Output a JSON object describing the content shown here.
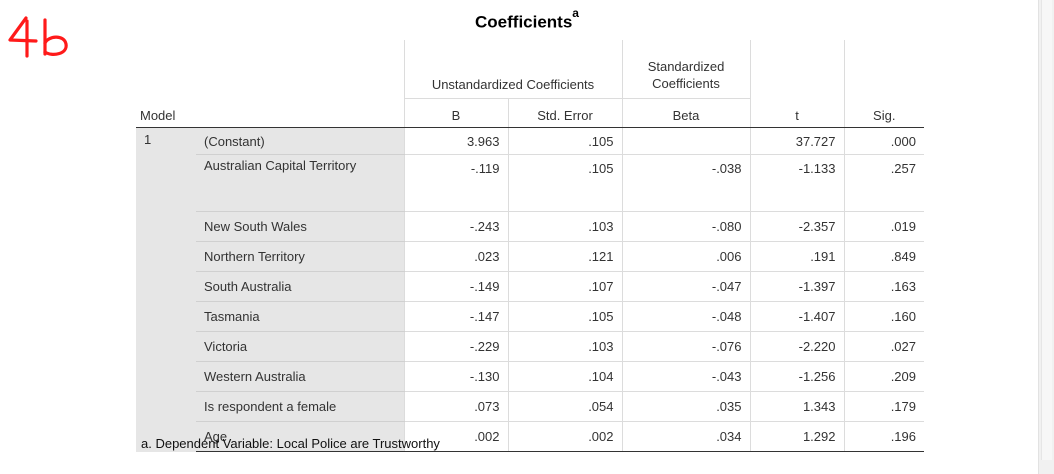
{
  "annotation": {
    "handwritten_text": "46",
    "color": "#ff1a1a"
  },
  "title": {
    "text": "Coefficients",
    "superscript": "a"
  },
  "headers": {
    "unstandardized_group": "Unstandardized Coefficients",
    "standardized_group_line1": "Standardized",
    "standardized_group_line2": "Coefficients",
    "model": "Model",
    "b": "B",
    "std_error": "Std. Error",
    "beta": "Beta",
    "t": "t",
    "sig": "Sig."
  },
  "model_number": "1",
  "rows": [
    {
      "label": "(Constant)",
      "b": "3.963",
      "se": ".105",
      "beta": "",
      "t": "37.727",
      "sig": ".000"
    },
    {
      "label": "Australian Capital Territory",
      "b": "-.119",
      "se": ".105",
      "beta": "-.038",
      "t": "-1.133",
      "sig": ".257"
    },
    {
      "label": "New South Wales",
      "b": "-.243",
      "se": ".103",
      "beta": "-.080",
      "t": "-2.357",
      "sig": ".019"
    },
    {
      "label": "Northern Territory",
      "b": ".023",
      "se": ".121",
      "beta": ".006",
      "t": ".191",
      "sig": ".849"
    },
    {
      "label": "South Australia",
      "b": "-.149",
      "se": ".107",
      "beta": "-.047",
      "t": "-1.397",
      "sig": ".163"
    },
    {
      "label": "Tasmania",
      "b": "-.147",
      "se": ".105",
      "beta": "-.048",
      "t": "-1.407",
      "sig": ".160"
    },
    {
      "label": "Victoria",
      "b": "-.229",
      "se": ".103",
      "beta": "-.076",
      "t": "-2.220",
      "sig": ".027"
    },
    {
      "label": "Western Australia",
      "b": "-.130",
      "se": ".104",
      "beta": "-.043",
      "t": "-1.256",
      "sig": ".209"
    },
    {
      "label": "Is respondent a female",
      "b": ".073",
      "se": ".054",
      "beta": ".035",
      "t": "1.343",
      "sig": ".179"
    },
    {
      "label": "Age",
      "b": ".002",
      "se": ".002",
      "beta": ".034",
      "t": "1.292",
      "sig": ".196"
    }
  ],
  "footnote": "a. Dependent Variable: Local Police are Trustworthy"
}
